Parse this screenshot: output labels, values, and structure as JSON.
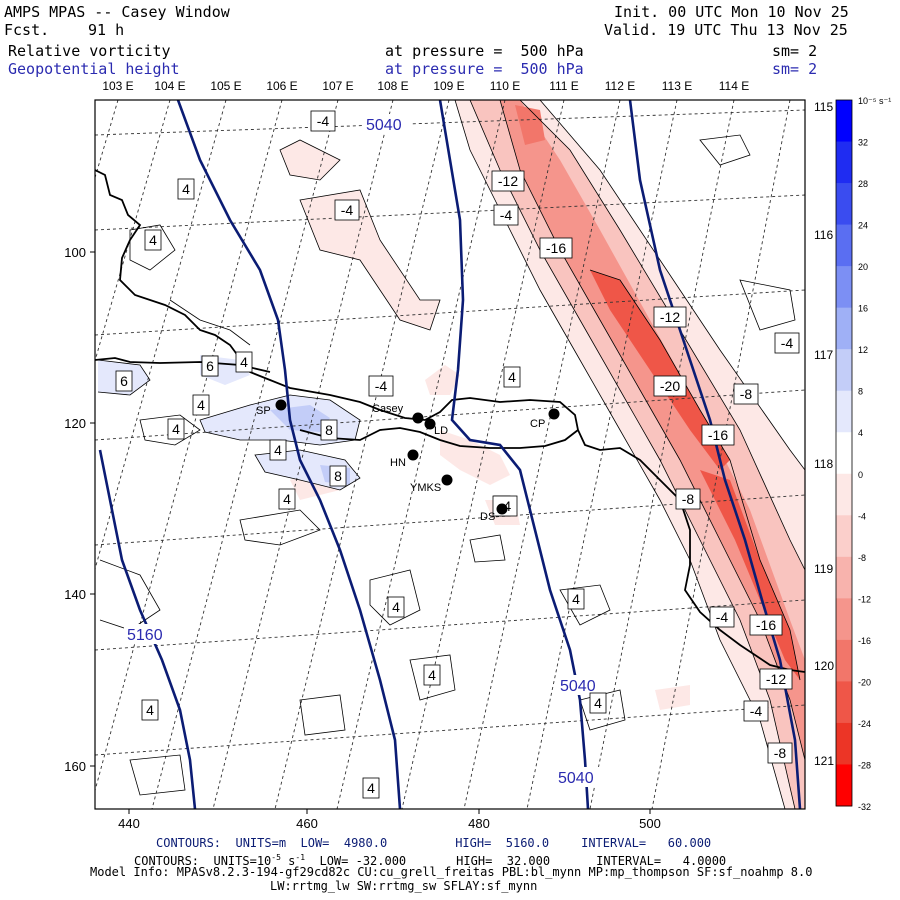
{
  "header": {
    "title": "AMPS MPAS -- Casey Window",
    "forecast_label": "Fcst.",
    "forecast_value": "91 h",
    "init": "Init. 00 UTC Mon 10 Nov 25",
    "valid": "Valid. 19 UTC Thu 13 Nov 25",
    "field1_name": "Relative vorticity",
    "field1_level": "at pressure =  500 hPa",
    "field1_sm": "sm= 2",
    "field2_name": "Geopotential height",
    "field2_level": "at pressure =  500 hPa",
    "field2_sm": "sm= 2"
  },
  "top_longitudes": [
    "103 E",
    "104 E",
    "105 E",
    "106 E",
    "107 E",
    "108 E",
    "109 E",
    "110 E",
    "111 E",
    "112 E",
    "113 E",
    "114 E"
  ],
  "right_longitudes": [
    "115 E",
    "116 E",
    "117 E",
    "118 E",
    "119 E",
    "120 E",
    "121 E"
  ],
  "x_ticks": [
    "440",
    "460",
    "480",
    "500"
  ],
  "y_ticks": [
    "100",
    "120",
    "140",
    "160"
  ],
  "stations": [
    {
      "name": "SP"
    },
    {
      "name": "Casey"
    },
    {
      "name": "LD"
    },
    {
      "name": "HN"
    },
    {
      "name": "YMKS"
    },
    {
      "name": "DS"
    },
    {
      "name": "CP"
    }
  ],
  "height_contour_labels": [
    "5040",
    "5040",
    "5040",
    "5160"
  ],
  "vorticity_labels": [
    "-4",
    "-4",
    "-12",
    "-4",
    "-16",
    "-12",
    "-20",
    "-8",
    "-16",
    "-8",
    "-4",
    "-16",
    "-12",
    "-4",
    "-8",
    "-4",
    "-4",
    "4",
    "4",
    "4",
    "6",
    "4",
    "8",
    "4",
    "4",
    "4",
    "4",
    "8",
    "6",
    "4",
    "4",
    "4",
    "4",
    "4",
    "4",
    "4",
    "4",
    "-4"
  ],
  "colorbar": {
    "units": "10⁻⁵ s⁻¹",
    "labels": [
      "32",
      "28",
      "24",
      "20",
      "16",
      "12",
      "8",
      "4",
      "0",
      "-4",
      "-8",
      "-12",
      "-16",
      "-20",
      "-24",
      "-28",
      "-32"
    ],
    "colors": [
      "#0000ff",
      "#1f2cf2",
      "#3a4cf0",
      "#5a6ef2",
      "#7c8ff4",
      "#9fb0f6",
      "#c3cdf8",
      "#e4e8fc",
      "#ffffff",
      "#fde8e6",
      "#fbcfcb",
      "#f8b3ad",
      "#f5958c",
      "#f2766a",
      "#ef5648",
      "#ec3526",
      "#ff0000"
    ]
  },
  "footer": {
    "line1_a": "CONTOURS:  UNITS=m  LOW=  4980.0",
    "line1_b": "HIGH=  5160.0",
    "line1_c": "INTERVAL=   60.000",
    "line2_a": "CONTOURS:  UNITS=10",
    "line2_b": "-5",
    "line2_c": " s",
    "line2_d": "-1",
    "line2_e": "  LOW= -32.000",
    "line2_f": "HIGH=  32.000",
    "line2_g": "INTERVAL=   4.0000",
    "line3": "Model Info: MPASv8.2.3-194-gf29cd82c CU:cu_grell_freitas PBL:bl_mynn MP:mp_thompson SF:sf_noahmp 8.0",
    "line4": "LW:rrtmg_lw SW:rrtmg_sw SFLAY:sf_mynn"
  }
}
